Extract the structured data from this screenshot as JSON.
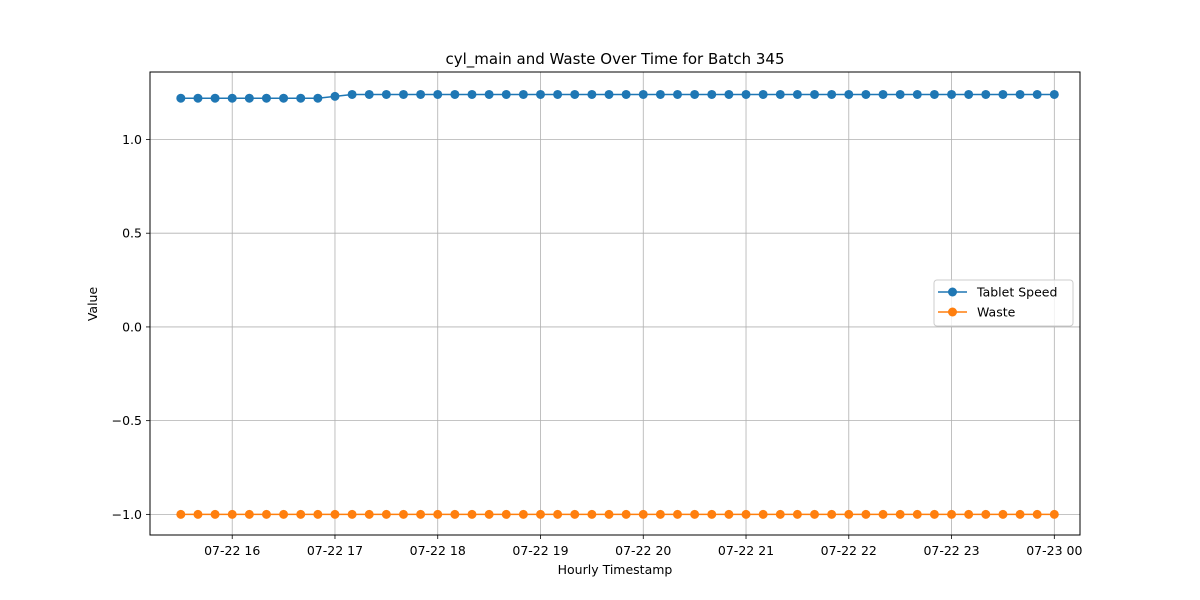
{
  "chart_data": {
    "type": "line",
    "title": "cyl_main and Waste Over Time for Batch 345",
    "xlabel": "Hourly Timestamp",
    "ylabel": "Value",
    "x_start": "2023-07-22T15:30:00",
    "x_step_minutes": 10,
    "x_ticks": [
      {
        "time": "2023-07-22T16:00:00",
        "label": "07-22 16"
      },
      {
        "time": "2023-07-22T17:00:00",
        "label": "07-22 17"
      },
      {
        "time": "2023-07-22T18:00:00",
        "label": "07-22 18"
      },
      {
        "time": "2023-07-22T19:00:00",
        "label": "07-22 19"
      },
      {
        "time": "2023-07-22T20:00:00",
        "label": "07-22 20"
      },
      {
        "time": "2023-07-22T21:00:00",
        "label": "07-22 21"
      },
      {
        "time": "2023-07-22T22:00:00",
        "label": "07-22 22"
      },
      {
        "time": "2023-07-22T23:00:00",
        "label": "07-22 23"
      },
      {
        "time": "2023-07-23T00:00:00",
        "label": "07-23 00"
      }
    ],
    "y_ticks": [
      {
        "value": 1.0,
        "label": "1.0"
      },
      {
        "value": 0.5,
        "label": "0.5"
      },
      {
        "value": 0.0,
        "label": "0.0"
      },
      {
        "value": -0.5,
        "label": "−0.5"
      },
      {
        "value": -1.0,
        "label": "−1.0"
      }
    ],
    "ylim": [
      -1.11,
      1.36
    ],
    "xlim": [
      "2023-07-22T15:12:00",
      "2023-07-23T00:15:00"
    ],
    "grid": true,
    "legend_position": "center-right",
    "series": [
      {
        "name": "Tablet Speed",
        "color": "#1f77b4",
        "marker": "circle",
        "values": [
          1.22,
          1.22,
          1.22,
          1.22,
          1.22,
          1.22,
          1.22,
          1.22,
          1.22,
          1.23,
          1.24,
          1.24,
          1.24,
          1.24,
          1.24,
          1.24,
          1.24,
          1.24,
          1.24,
          1.24,
          1.24,
          1.24,
          1.24,
          1.24,
          1.24,
          1.24,
          1.24,
          1.24,
          1.24,
          1.24,
          1.24,
          1.24,
          1.24,
          1.24,
          1.24,
          1.24,
          1.24,
          1.24,
          1.24,
          1.24,
          1.24,
          1.24,
          1.24,
          1.24,
          1.24,
          1.24,
          1.24,
          1.24,
          1.24,
          1.24,
          1.24,
          1.24
        ]
      },
      {
        "name": "Waste",
        "color": "#ff7f0e",
        "marker": "circle",
        "values": [
          -1.0,
          -1.0,
          -1.0,
          -1.0,
          -1.0,
          -1.0,
          -1.0,
          -1.0,
          -1.0,
          -1.0,
          -1.0,
          -1.0,
          -1.0,
          -1.0,
          -1.0,
          -1.0,
          -1.0,
          -1.0,
          -1.0,
          -1.0,
          -1.0,
          -1.0,
          -1.0,
          -1.0,
          -1.0,
          -1.0,
          -1.0,
          -1.0,
          -1.0,
          -1.0,
          -1.0,
          -1.0,
          -1.0,
          -1.0,
          -1.0,
          -1.0,
          -1.0,
          -1.0,
          -1.0,
          -1.0,
          -1.0,
          -1.0,
          -1.0,
          -1.0,
          -1.0,
          -1.0,
          -1.0,
          -1.0,
          -1.0,
          -1.0,
          -1.0,
          -1.0
        ]
      }
    ]
  }
}
